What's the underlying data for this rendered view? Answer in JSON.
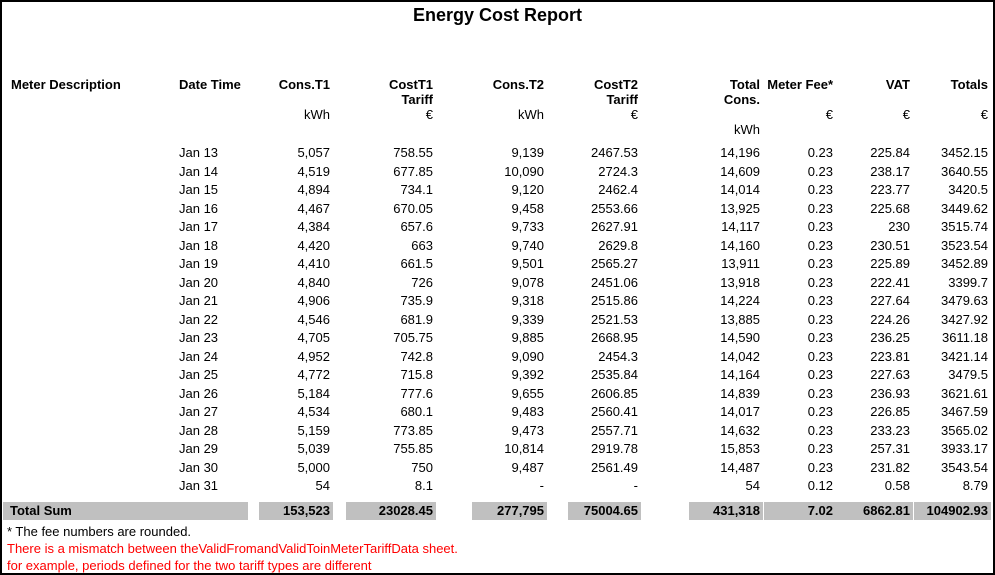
{
  "title": "Energy Cost Report",
  "colors": {
    "total_row_bg": "#c0c0c0",
    "warning_text": "#ff0000",
    "page_border": "#000000"
  },
  "table": {
    "columns": [
      {
        "id": "meter_description",
        "header": "Meter Description",
        "header2": "",
        "unit": "",
        "unit2": ""
      },
      {
        "id": "date_time",
        "header": "Date Time",
        "header2": "",
        "unit": "",
        "unit2": ""
      },
      {
        "id": "cons_t1",
        "header": "Cons.T1",
        "header2": "",
        "unit": "kWh",
        "unit2": ""
      },
      {
        "id": "cost_t1_tariff",
        "header": "CostT1",
        "header2": "Tariff",
        "unit": "€",
        "unit2": ""
      },
      {
        "id": "cons_t2",
        "header": "Cons.T2",
        "header2": "",
        "unit": "kWh",
        "unit2": ""
      },
      {
        "id": "cost_t2_tariff",
        "header": "CostT2",
        "header2": "Tariff",
        "unit": "€",
        "unit2": ""
      },
      {
        "id": "total_cons",
        "header": "Total",
        "header2": "Cons.",
        "unit": "",
        "unit2": "kWh"
      },
      {
        "id": "meter_fee",
        "header": "Meter Fee*",
        "header2": "",
        "unit": "€",
        "unit2": ""
      },
      {
        "id": "vat",
        "header": "VAT",
        "header2": "",
        "unit": "€",
        "unit2": ""
      },
      {
        "id": "totals",
        "header": "Totals",
        "header2": "",
        "unit": "€",
        "unit2": ""
      }
    ],
    "rows": [
      [
        "",
        "Jan 13",
        "5,057",
        "758.55",
        "9,139",
        "2467.53",
        "14,196",
        "0.23",
        "225.84",
        "3452.15"
      ],
      [
        "",
        "Jan 14",
        "4,519",
        "677.85",
        "10,090",
        "2724.3",
        "14,609",
        "0.23",
        "238.17",
        "3640.55"
      ],
      [
        "",
        "Jan 15",
        "4,894",
        "734.1",
        "9,120",
        "2462.4",
        "14,014",
        "0.23",
        "223.77",
        "3420.5"
      ],
      [
        "",
        "Jan 16",
        "4,467",
        "670.05",
        "9,458",
        "2553.66",
        "13,925",
        "0.23",
        "225.68",
        "3449.62"
      ],
      [
        "",
        "Jan 17",
        "4,384",
        "657.6",
        "9,733",
        "2627.91",
        "14,117",
        "0.23",
        "230",
        "3515.74"
      ],
      [
        "",
        "Jan 18",
        "4,420",
        "663",
        "9,740",
        "2629.8",
        "14,160",
        "0.23",
        "230.51",
        "3523.54"
      ],
      [
        "",
        "Jan 19",
        "4,410",
        "661.5",
        "9,501",
        "2565.27",
        "13,911",
        "0.23",
        "225.89",
        "3452.89"
      ],
      [
        "",
        "Jan 20",
        "4,840",
        "726",
        "9,078",
        "2451.06",
        "13,918",
        "0.23",
        "222.41",
        "3399.7"
      ],
      [
        "",
        "Jan 21",
        "4,906",
        "735.9",
        "9,318",
        "2515.86",
        "14,224",
        "0.23",
        "227.64",
        "3479.63"
      ],
      [
        "",
        "Jan 22",
        "4,546",
        "681.9",
        "9,339",
        "2521.53",
        "13,885",
        "0.23",
        "224.26",
        "3427.92"
      ],
      [
        "",
        "Jan 23",
        "4,705",
        "705.75",
        "9,885",
        "2668.95",
        "14,590",
        "0.23",
        "236.25",
        "3611.18"
      ],
      [
        "",
        "Jan 24",
        "4,952",
        "742.8",
        "9,090",
        "2454.3",
        "14,042",
        "0.23",
        "223.81",
        "3421.14"
      ],
      [
        "",
        "Jan 25",
        "4,772",
        "715.8",
        "9,392",
        "2535.84",
        "14,164",
        "0.23",
        "227.63",
        "3479.5"
      ],
      [
        "",
        "Jan 26",
        "5,184",
        "777.6",
        "9,655",
        "2606.85",
        "14,839",
        "0.23",
        "236.93",
        "3621.61"
      ],
      [
        "",
        "Jan 27",
        "4,534",
        "680.1",
        "9,483",
        "2560.41",
        "14,017",
        "0.23",
        "226.85",
        "3467.59"
      ],
      [
        "",
        "Jan 28",
        "5,159",
        "773.85",
        "9,473",
        "2557.71",
        "14,632",
        "0.23",
        "233.23",
        "3565.02"
      ],
      [
        "",
        "Jan 29",
        "5,039",
        "755.85",
        "10,814",
        "2919.78",
        "15,853",
        "0.23",
        "257.31",
        "3933.17"
      ],
      [
        "",
        "Jan 30",
        "5,000",
        "750",
        "9,487",
        "2561.49",
        "14,487",
        "0.23",
        "231.82",
        "3543.54"
      ],
      [
        "",
        "Jan 31",
        "54",
        "8.1",
        "-",
        "-",
        "54",
        "0.12",
        "0.58",
        "8.79"
      ]
    ],
    "total_row": [
      "Total Sum",
      "",
      "153,523",
      "23028.45",
      "277,795",
      "75004.65",
      "431,318",
      "7.02",
      "6862.81",
      "104902.93"
    ]
  },
  "footnotes": {
    "note": "* The fee numbers are rounded.",
    "warning_line1": "There is a mismatch between theValidFromandValidToinMeterTariffData sheet.",
    "warning_line2": "for example, periods defined for the two tariff types are different"
  }
}
